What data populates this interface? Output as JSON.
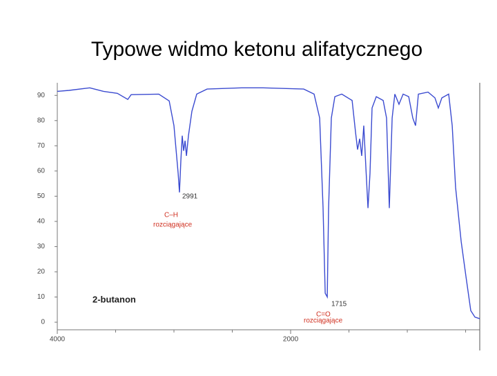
{
  "chart_data": {
    "type": "line",
    "title": "Typowe widmo ketonu alifatycznego",
    "x": [
      4000,
      3899,
      3722,
      3604,
      3485,
      3396,
      3367,
      3130,
      3041,
      3000,
      2964,
      2953,
      2941,
      2929,
      2917,
      2905,
      2893,
      2876,
      2846,
      2805,
      2716,
      2420,
      2243,
      1888,
      1799,
      1751,
      1722,
      1704,
      1686,
      1675,
      1651,
      1621,
      1562,
      1473,
      1444,
      1426,
      1408,
      1391,
      1373,
      1355,
      1337,
      1320,
      1302,
      1266,
      1207,
      1178,
      1154,
      1130,
      1107,
      1071,
      1036,
      988,
      953,
      929,
      905,
      822,
      763,
      734,
      704,
      645,
      615,
      586,
      538,
      497,
      456,
      420,
      379
    ],
    "series": [
      {
        "name": "2-butanon",
        "color": "#3a4ad0",
        "values": [
          91.6,
          92,
          93,
          91.6,
          90.8,
          88.4,
          90.3,
          90.5,
          87.8,
          78,
          59,
          51.5,
          64,
          74,
          68,
          72,
          66,
          74,
          83.7,
          90.5,
          92.5,
          93,
          93,
          92.5,
          90.5,
          81,
          45.5,
          11.5,
          10,
          45,
          81,
          89.5,
          90.5,
          88,
          75.5,
          68.5,
          72.8,
          66,
          78,
          61.6,
          45.3,
          59,
          85,
          89.5,
          88,
          81,
          45.3,
          81,
          90.5,
          86.5,
          90.5,
          89.5,
          81,
          78,
          90.5,
          91.3,
          89,
          85,
          89,
          90.5,
          78,
          53.5,
          32,
          18,
          4.6,
          2,
          1.4
        ]
      }
    ],
    "xlim": [
      4000,
      379
    ],
    "xticks": [
      4000,
      2000
    ],
    "xminorticks": [
      3500,
      3000,
      2500,
      1500,
      1000,
      500
    ],
    "ylim": [
      -3,
      95
    ],
    "yticks": [
      0,
      10,
      20,
      30,
      40,
      50,
      60,
      70,
      80,
      90
    ],
    "annotations": {
      "peak_ch": "2991",
      "ch_group": "C–H",
      "ch_mode": "rozciągające",
      "peak_co": "1715",
      "co_group": "C=O",
      "co_mode": "rozciągające"
    }
  }
}
